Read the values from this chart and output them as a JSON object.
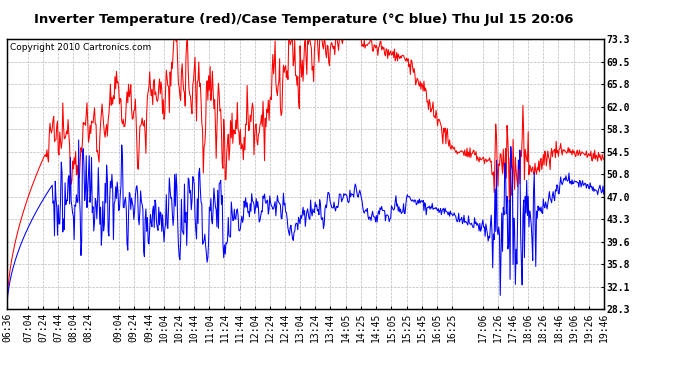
{
  "title": "Inverter Temperature (red)/Case Temperature (°C blue) Thu Jul 15 20:06",
  "copyright": "Copyright 2010 Cartronics.com",
  "yticks": [
    28.3,
    32.1,
    35.8,
    39.6,
    43.3,
    47.0,
    50.8,
    54.5,
    58.3,
    62.0,
    65.8,
    69.5,
    73.3
  ],
  "ymin": 28.3,
  "ymax": 73.3,
  "background_color": "#ffffff",
  "plot_bg_color": "#ffffff",
  "grid_color": "#bbbbbb",
  "title_fontsize": 9.5,
  "copyright_fontsize": 6.5,
  "tick_fontsize": 7,
  "xtick_labels": [
    "06:36",
    "07:04",
    "07:24",
    "07:44",
    "08:04",
    "08:24",
    "09:04",
    "09:24",
    "09:44",
    "10:04",
    "10:24",
    "10:44",
    "11:04",
    "11:24",
    "11:44",
    "12:04",
    "12:24",
    "12:44",
    "13:04",
    "13:24",
    "13:44",
    "14:05",
    "14:25",
    "14:45",
    "15:05",
    "15:25",
    "15:45",
    "16:05",
    "16:25",
    "17:06",
    "17:26",
    "17:46",
    "18:06",
    "18:26",
    "18:46",
    "19:06",
    "19:26",
    "19:46"
  ],
  "start_hhmm": "06:36"
}
